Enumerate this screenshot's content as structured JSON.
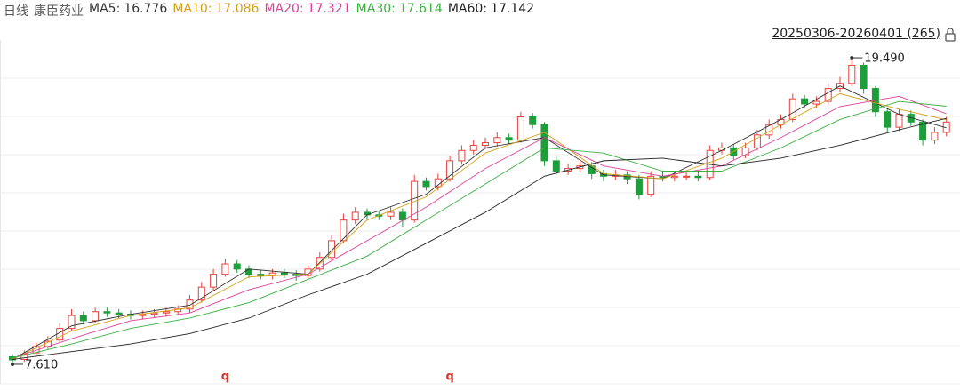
{
  "chart_data": {
    "type": "candlestick",
    "period": "日线",
    "title": "康臣药业",
    "range_label": "20250306-20260401 (265)",
    "ylim": [
      6.92,
      20.18
    ],
    "up_color": "#e8413c",
    "down_color": "#1e9e3a",
    "candles": {
      "open": [
        7.9,
        7.8,
        8.05,
        8.3,
        8.55,
        9.0,
        9.5,
        9.3,
        9.65,
        9.6,
        9.55,
        9.5,
        9.55,
        9.6,
        9.65,
        9.75,
        10.1,
        10.6,
        11.1,
        11.5,
        11.3,
        11.1,
        11.05,
        11.15,
        11.1,
        11.05,
        11.3,
        11.75,
        12.4,
        13.2,
        13.5,
        13.4,
        13.35,
        13.5,
        13.2,
        14.7,
        14.5,
        14.8,
        15.5,
        15.9,
        16.1,
        16.2,
        16.4,
        16.3,
        17.2,
        16.9,
        15.5,
        15.1,
        15.2,
        15.3,
        15.0,
        14.9,
        14.95,
        14.8,
        14.2,
        14.9,
        14.85,
        14.9,
        14.9,
        14.85,
        15.9,
        16.0,
        15.7,
        16.0,
        16.5,
        16.9,
        17.1,
        17.9,
        17.7,
        17.8,
        18.3,
        18.5,
        19.2,
        18.3,
        17.4,
        16.8,
        17.3,
        17.0,
        16.3,
        16.6
      ],
      "high": [
        8.0,
        8.15,
        8.45,
        8.7,
        9.2,
        9.75,
        9.65,
        9.8,
        9.8,
        9.75,
        9.7,
        9.7,
        9.75,
        9.8,
        9.9,
        10.3,
        10.8,
        11.3,
        11.7,
        11.65,
        11.45,
        11.25,
        11.3,
        11.3,
        11.25,
        11.45,
        11.95,
        12.6,
        13.45,
        13.7,
        13.65,
        13.55,
        13.7,
        13.65,
        14.95,
        14.85,
        15.0,
        15.7,
        16.1,
        16.3,
        16.4,
        16.6,
        16.55,
        17.4,
        17.35,
        17.0,
        15.65,
        15.4,
        15.5,
        15.45,
        15.15,
        15.15,
        15.1,
        14.95,
        15.1,
        15.05,
        15.1,
        15.05,
        15.05,
        16.1,
        16.2,
        16.15,
        16.2,
        16.7,
        17.1,
        17.3,
        18.1,
        18.05,
        18.0,
        18.5,
        18.75,
        19.49,
        19.3,
        18.4,
        17.55,
        17.5,
        17.45,
        17.1,
        16.8,
        17.2
      ],
      "low": [
        7.61,
        7.7,
        7.95,
        8.2,
        8.45,
        8.9,
        9.15,
        9.2,
        9.45,
        9.4,
        9.35,
        9.35,
        9.4,
        9.45,
        9.5,
        9.6,
        10.0,
        10.45,
        11.0,
        11.15,
        10.95,
        10.9,
        10.9,
        10.95,
        10.85,
        10.95,
        11.2,
        11.6,
        12.3,
        13.05,
        13.25,
        13.2,
        13.2,
        12.95,
        13.1,
        14.35,
        14.35,
        14.7,
        15.35,
        15.75,
        15.95,
        16.05,
        16.15,
        16.2,
        16.75,
        15.3,
        14.95,
        14.95,
        15.05,
        14.8,
        14.7,
        14.75,
        14.6,
        14.0,
        14.1,
        14.7,
        14.7,
        14.75,
        14.7,
        14.75,
        15.75,
        15.55,
        15.6,
        15.9,
        16.35,
        16.75,
        17.0,
        17.55,
        17.55,
        17.65,
        18.15,
        18.4,
        18.1,
        17.2,
        16.6,
        16.65,
        16.85,
        16.1,
        16.15,
        16.45
      ],
      "close": [
        7.78,
        8.0,
        8.3,
        8.5,
        9.0,
        9.5,
        9.3,
        9.65,
        9.6,
        9.55,
        9.5,
        9.55,
        9.6,
        9.65,
        9.75,
        10.1,
        10.6,
        11.1,
        11.5,
        11.3,
        11.1,
        11.05,
        11.15,
        11.1,
        11.05,
        11.3,
        11.75,
        12.4,
        13.2,
        13.5,
        13.4,
        13.35,
        13.5,
        13.2,
        14.7,
        14.5,
        14.8,
        15.5,
        15.9,
        16.1,
        16.2,
        16.4,
        16.3,
        17.2,
        16.9,
        15.5,
        15.1,
        15.2,
        15.3,
        15.0,
        14.9,
        14.95,
        14.8,
        14.2,
        14.9,
        14.85,
        14.9,
        14.9,
        14.85,
        15.9,
        16.0,
        15.7,
        16.0,
        16.5,
        16.9,
        17.1,
        17.9,
        17.7,
        17.8,
        18.3,
        18.5,
        19.2,
        18.3,
        17.4,
        16.8,
        17.3,
        17.0,
        16.3,
        16.6,
        17.0
      ]
    },
    "ma_index": [
      0,
      5,
      10,
      15,
      20,
      25,
      30,
      35,
      40,
      45,
      50,
      55,
      60,
      65,
      70,
      75,
      79
    ],
    "series": [
      {
        "name": "MA5:",
        "color": "#333333",
        "values": [
          7.8,
          9.1,
          9.55,
          9.9,
          11.3,
          11.1,
          13.4,
          14.2,
          16.0,
          16.4,
          14.95,
          14.8,
          15.9,
          17.1,
          18.4,
          17.3,
          16.776
        ]
      },
      {
        "name": "MA10:",
        "color": "#d4a017",
        "values": [
          7.8,
          8.9,
          9.5,
          9.8,
          11.0,
          11.1,
          13.2,
          14.1,
          15.8,
          16.6,
          15.0,
          14.8,
          15.6,
          16.9,
          18.1,
          17.5,
          17.086
        ]
      },
      {
        "name": "MA20:",
        "color": "#e0409a",
        "values": [
          7.85,
          8.6,
          9.3,
          9.6,
          10.5,
          11.1,
          12.4,
          13.7,
          15.2,
          16.4,
          15.3,
          14.9,
          15.3,
          16.4,
          17.6,
          18.0,
          17.321
        ]
      },
      {
        "name": "MA30:",
        "color": "#3cb043",
        "values": [
          7.85,
          8.4,
          9.0,
          9.4,
          10.0,
          10.9,
          11.8,
          13.2,
          14.6,
          16.0,
          15.8,
          15.1,
          15.1,
          16.0,
          17.1,
          17.8,
          17.614
        ]
      },
      {
        "name": "MA60:",
        "color": "#222222",
        "values": [
          7.8,
          8.1,
          8.4,
          8.8,
          9.4,
          10.3,
          11.1,
          12.3,
          13.5,
          14.9,
          15.5,
          15.6,
          15.3,
          15.6,
          16.1,
          16.7,
          17.142
        ]
      }
    ],
    "extremes": [
      {
        "value": 19.49,
        "label": "19.490"
      },
      {
        "value": 7.61,
        "label": "7.610"
      }
    ],
    "markers": [
      {
        "label": "q",
        "index": 18
      },
      {
        "label": "q",
        "index": 37
      }
    ]
  }
}
